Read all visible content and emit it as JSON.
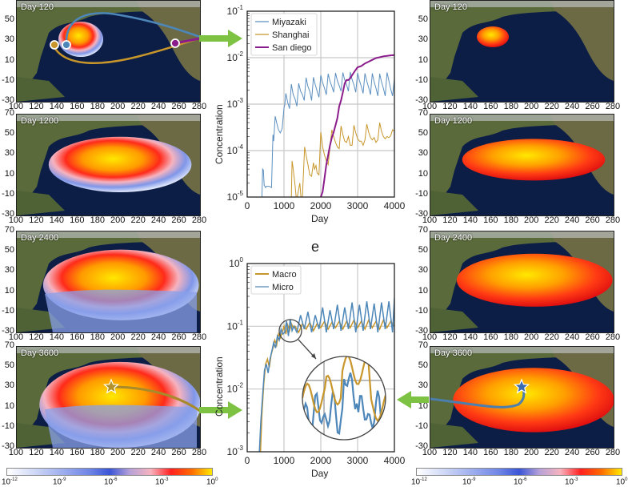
{
  "figure": {
    "panel_letter": "e",
    "map_panels_left": [
      {
        "title": "Day 120",
        "plume": "small",
        "scheme": "full"
      },
      {
        "title": "Day 1200",
        "plume": "medium",
        "scheme": "full"
      },
      {
        "title": "Day 2400",
        "plume": "large",
        "scheme": "full"
      },
      {
        "title": "Day 3600",
        "plume": "xlarge",
        "scheme": "full"
      }
    ],
    "map_panels_right": [
      {
        "title": "Day 120",
        "plume": "small",
        "scheme": "hot"
      },
      {
        "title": "Day 1200",
        "plume": "medium",
        "scheme": "hot"
      },
      {
        "title": "Day 2400",
        "plume": "large",
        "scheme": "hot"
      },
      {
        "title": "Day 3600",
        "plume": "xlarge",
        "scheme": "hot"
      }
    ],
    "map_axes": {
      "lon_ticks": [
        "100",
        "120",
        "140",
        "160",
        "180",
        "200",
        "220",
        "240",
        "260",
        "280"
      ],
      "lat_ticks": [
        "70",
        "50",
        "30",
        "10",
        "-10",
        "-30"
      ]
    },
    "route_markers": [
      {
        "name": "Shanghai",
        "lon": 121,
        "lat": 23,
        "color": "#c8962a"
      },
      {
        "name": "Miyazaki",
        "lon": 132,
        "lat": 24,
        "color": "#4d86b8"
      },
      {
        "name": "San diego",
        "lon": 240,
        "lat": 26,
        "color": "#8b1c8b"
      }
    ],
    "colorbar": {
      "labels": [
        {
          "base": "10",
          "exp": "-12"
        },
        {
          "base": "10",
          "exp": "-9"
        },
        {
          "base": "10",
          "exp": "-6"
        },
        {
          "base": "10",
          "exp": "-3"
        },
        {
          "base": "10",
          "exp": "0"
        }
      ]
    },
    "colors": {
      "arrow": "#7dc242",
      "miyazaki": "#5b8fc0",
      "shanghai": "#c8962a",
      "sandiego": "#8b1c8b",
      "macro": "#c8962a",
      "micro": "#4d86b8"
    }
  },
  "chart_data": [
    {
      "type": "line",
      "title": "",
      "xlabel": "Day",
      "ylabel": "Concentration",
      "xlim": [
        0,
        4000
      ],
      "ylim_log10": [
        -5,
        -1
      ],
      "yscale": "log",
      "x_ticks": [
        "0",
        "1000",
        "2000",
        "3000",
        "4000"
      ],
      "y_ticks": [
        {
          "base": "10",
          "exp": "-1"
        },
        {
          "base": "10",
          "exp": "-2"
        },
        {
          "base": "10",
          "exp": "-3"
        },
        {
          "base": "10",
          "exp": "-4"
        },
        {
          "base": "10",
          "exp": "-5"
        }
      ],
      "grid": true,
      "legend": "top-left",
      "series": [
        {
          "name": "Miyazaki",
          "color": "#5b8fc0",
          "x": [
            400,
            420,
            440,
            460,
            480,
            500,
            520,
            600,
            660,
            700,
            720,
            760,
            800,
            850,
            900,
            950,
            1000,
            1020,
            1050,
            1100,
            1150,
            1200,
            1250,
            1300,
            1350,
            1400,
            1450,
            1500,
            1550,
            1600,
            1650,
            1700,
            1750,
            1800,
            1850,
            1900,
            1950,
            2000,
            2050,
            2100,
            2150,
            2200,
            2250,
            2300,
            2350,
            2400,
            2450,
            2500,
            2550,
            2600,
            2650,
            2700,
            2750,
            2800,
            2850,
            2900,
            2950,
            3000,
            3050,
            3100,
            3150,
            3200,
            3250,
            3300,
            3350,
            3400,
            3450,
            3500,
            3550,
            3600,
            3650,
            3700,
            3750,
            3800,
            3850,
            3900,
            3950,
            4000
          ],
          "y": [
            1e-05,
            4e-05,
            3.8e-05,
            1.8e-05,
            1.7e-05,
            1.6e-05,
            1.7e-05,
            1.7e-05,
            1.6e-05,
            0.00022,
            0.00016,
            0.00055,
            0.0004,
            0.00028,
            0.00024,
            0.0003,
            0.00082,
            0.00095,
            0.0017,
            0.0011,
            0.0008,
            0.0027,
            0.0016,
            0.0013,
            0.0009,
            0.0028,
            0.0019,
            0.0016,
            0.0012,
            0.0037,
            0.0024,
            0.0019,
            0.0012,
            0.0038,
            0.0026,
            0.0019,
            0.0014,
            0.0042,
            0.0029,
            0.0022,
            0.0016,
            0.0045,
            0.0031,
            0.0024,
            0.0018,
            0.0047,
            0.0032,
            0.0025,
            0.0019,
            0.0048,
            0.0033,
            0.0026,
            0.0019,
            0.0049,
            0.0034,
            0.0026,
            0.0018,
            0.0047,
            0.0032,
            0.0024,
            0.0017,
            0.0046,
            0.0031,
            0.0023,
            0.0016,
            0.0046,
            0.003,
            0.0022,
            0.0015,
            0.0045,
            0.003,
            0.0022,
            0.0015,
            0.0048,
            0.0032,
            0.0021,
            0.0015,
            0.0035
          ]
        },
        {
          "name": "Shanghai",
          "color": "#c8962a",
          "x": [
            1200,
            1220,
            1250,
            1300,
            1330,
            1360,
            1400,
            1430,
            1460,
            1500,
            1560,
            1600,
            1650,
            1700,
            1750,
            1800,
            1830,
            1870,
            1900,
            1950,
            2000,
            2050,
            2100,
            2150,
            2200,
            2250,
            2300,
            2350,
            2400,
            2450,
            2500,
            2550,
            2600,
            2650,
            2700,
            2750,
            2800,
            2850,
            2900,
            2950,
            3000,
            3050,
            3100,
            3150,
            3200,
            3250,
            3300,
            3350,
            3400,
            3450,
            3500,
            3550,
            3600,
            3650,
            3700,
            3750,
            3800,
            3850,
            3900,
            3950,
            4000
          ],
          "y": [
            1e-05,
            6e-05,
            4e-05,
            1.8e-05,
            1e-05,
            1e-05,
            1.5e-05,
            2e-05,
            1e-05,
            1e-05,
            0.00012,
            8e-05,
            5e-05,
            3e-05,
            2.8e-05,
            5.5e-05,
            4e-05,
            4.8e-05,
            3.3e-05,
            3e-05,
            0.00025,
            0.00012,
            8e-05,
            6e-05,
            5e-05,
            0.00012,
            0.00028,
            0.0002,
            0.00015,
            0.00012,
            0.00011,
            0.00034,
            0.00022,
            0.00016,
            0.00015,
            0.0002,
            0.00013,
            0.00013,
            0.00035,
            0.00024,
            0.00018,
            0.00016,
            0.00016,
            0.00013,
            0.00017,
            0.00037,
            0.00025,
            0.00019,
            0.00017,
            0.00019,
            0.00015,
            0.00017,
            0.0004,
            0.00026,
            0.0002,
            0.00018,
            0.0002,
            0.00019,
            0.00021,
            0.00028,
            0.00026
          ]
        },
        {
          "name": "San diego",
          "color": "#8b1c8b",
          "x": [
            2000,
            2050,
            2100,
            2150,
            2200,
            2250,
            2300,
            2350,
            2400,
            2450,
            2500,
            2550,
            2600,
            2650,
            2700,
            2750,
            2800,
            2850,
            2900,
            2950,
            3000,
            3100,
            3200,
            3300,
            3400,
            3500,
            3600,
            3700,
            3800,
            3900,
            4000
          ],
          "y": [
            1e-05,
            1.3e-05,
            2.5e-05,
            5e-05,
            8e-05,
            0.00013,
            0.00019,
            0.00025,
            0.00035,
            0.0005,
            0.0009,
            0.0012,
            0.0018,
            0.0028,
            0.0033,
            0.0033,
            0.0036,
            0.0042,
            0.0048,
            0.0055,
            0.0062,
            0.0066,
            0.0075,
            0.0082,
            0.009,
            0.0098,
            0.0102,
            0.0107,
            0.0109,
            0.0112,
            0.0114
          ]
        }
      ]
    },
    {
      "type": "line",
      "title": "e",
      "xlabel": "Day",
      "ylabel": "Concentration",
      "xlim": [
        0,
        4000
      ],
      "ylim_log10": [
        -3,
        0
      ],
      "yscale": "log",
      "x_ticks": [
        "0",
        "1000",
        "2000",
        "3000",
        "4000"
      ],
      "y_ticks": [
        {
          "base": "10",
          "exp": "0"
        },
        {
          "base": "10",
          "exp": "-1"
        },
        {
          "base": "10",
          "exp": "-2"
        },
        {
          "base": "10",
          "exp": "-3"
        }
      ],
      "grid": true,
      "legend": "top-left",
      "inset": "magnified view of day ~1000-1300 region",
      "series": [
        {
          "name": "Macro",
          "color": "#c8962a",
          "x": [
            360,
            400,
            450,
            500,
            550,
            600,
            650,
            700,
            750,
            800,
            850,
            900,
            950,
            1000,
            1050,
            1100,
            1150,
            1200,
            1250,
            1300,
            1400,
            1500,
            1600,
            1700,
            1800,
            1900,
            2000,
            2100,
            2200,
            2300,
            2400,
            2500,
            2600,
            2700,
            2800,
            2900,
            3000,
            3100,
            3200,
            3300,
            3400,
            3500,
            3600,
            3700,
            3800,
            3900,
            4000
          ],
          "y": [
            0.001,
            0.004,
            0.012,
            0.025,
            0.03,
            0.022,
            0.035,
            0.045,
            0.06,
            0.05,
            0.075,
            0.065,
            0.08,
            0.1,
            0.075,
            0.105,
            0.085,
            0.11,
            0.095,
            0.1,
            0.08,
            0.11,
            0.09,
            0.115,
            0.085,
            0.11,
            0.095,
            0.12,
            0.09,
            0.115,
            0.095,
            0.12,
            0.09,
            0.12,
            0.095,
            0.125,
            0.095,
            0.12,
            0.09,
            0.125,
            0.095,
            0.12,
            0.09,
            0.125,
            0.095,
            0.12,
            0.1
          ]
        },
        {
          "name": "Micro",
          "color": "#4d86b8",
          "x": [
            330,
            370,
            420,
            470,
            520,
            570,
            620,
            670,
            720,
            770,
            820,
            870,
            920,
            970,
            1020,
            1070,
            1120,
            1170,
            1220,
            1270,
            1350,
            1450,
            1550,
            1650,
            1750,
            1850,
            1950,
            2050,
            2150,
            2250,
            2350,
            2450,
            2550,
            2650,
            2750,
            2850,
            2950,
            3050,
            3150,
            3250,
            3350,
            3450,
            3550,
            3650,
            3750,
            3850,
            3950,
            4000
          ],
          "y": [
            0.001,
            0.003,
            0.008,
            0.02,
            0.025,
            0.018,
            0.03,
            0.04,
            0.055,
            0.045,
            0.07,
            0.06,
            0.09,
            0.075,
            0.08,
            0.12,
            0.07,
            0.13,
            0.085,
            0.1,
            0.08,
            0.15,
            0.09,
            0.17,
            0.08,
            0.15,
            0.09,
            0.2,
            0.08,
            0.18,
            0.09,
            0.22,
            0.085,
            0.2,
            0.09,
            0.24,
            0.08,
            0.22,
            0.085,
            0.25,
            0.09,
            0.23,
            0.08,
            0.24,
            0.09,
            0.25,
            0.08,
            0.28
          ]
        }
      ]
    }
  ]
}
